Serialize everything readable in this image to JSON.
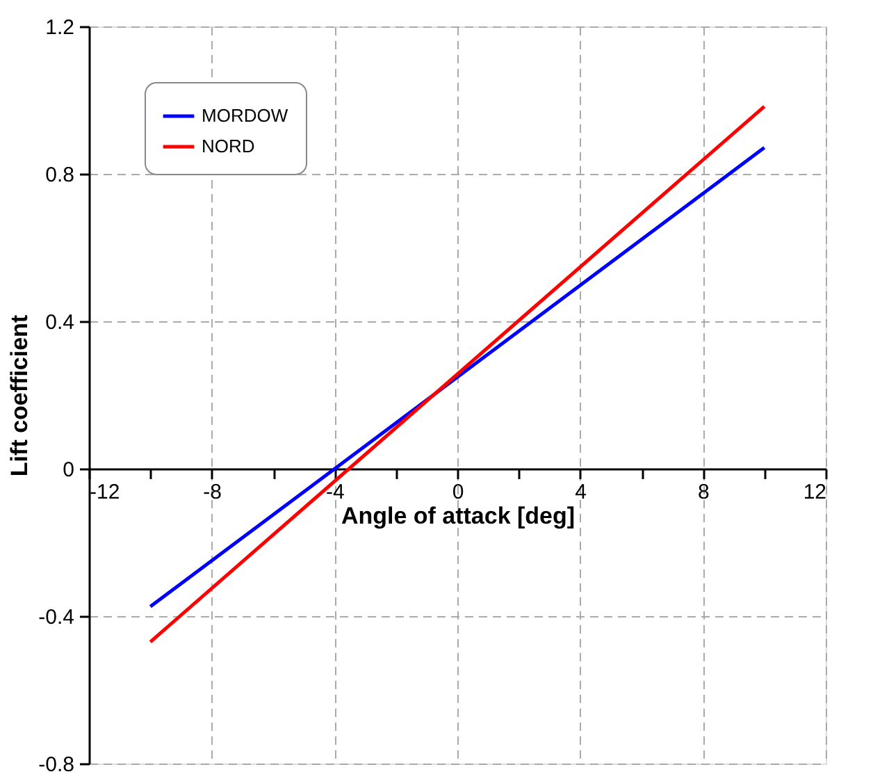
{
  "chart_data": {
    "type": "line",
    "xlabel": "Angle of attack [deg]",
    "ylabel": "Lift coefficient",
    "x": [
      -10,
      10
    ],
    "series": [
      {
        "name": "MORDOW",
        "color": "#0000ff",
        "values": [
          -0.374,
          0.871
        ]
      },
      {
        "name": "NORD",
        "color": "#ff0000",
        "values": [
          -0.47,
          0.983
        ]
      }
    ],
    "xlim": [
      -12,
      12
    ],
    "ylim": [
      -0.8,
      1.2
    ],
    "xticks": [
      -12,
      {
        "value": -10,
        "label": null
      },
      -8,
      {
        "value": -6,
        "label": null
      },
      -4,
      {
        "value": -2,
        "label": null
      },
      0,
      {
        "value": 2,
        "label": null
      },
      4,
      {
        "value": 6,
        "label": null
      },
      8,
      {
        "value": 10,
        "label": null
      },
      12
    ],
    "yticks": [
      -0.8,
      -0.4,
      0,
      0.4,
      0.8,
      1.2
    ],
    "grid": true,
    "legend": "top left",
    "marker": "none",
    "line_style": "solid"
  }
}
